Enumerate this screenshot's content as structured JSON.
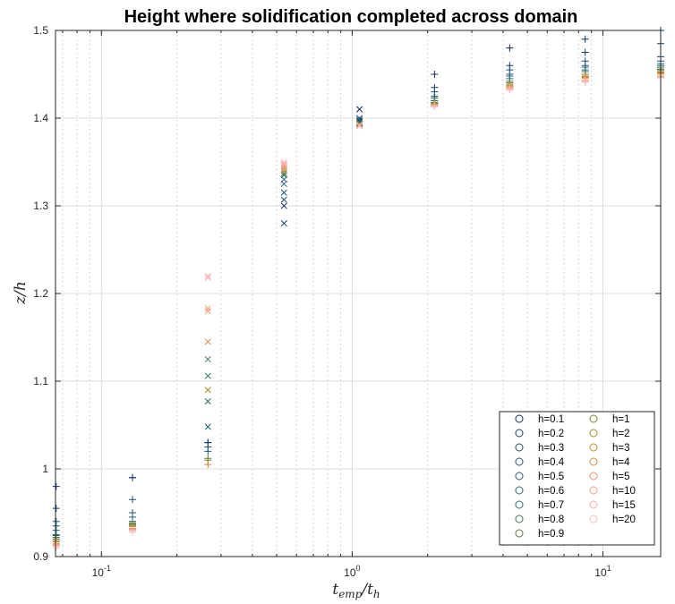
{
  "chart_data": {
    "type": "scatter",
    "title": "Height where solidification completed across domain",
    "xlabel_base": "t",
    "xlabel_base_sub": "emp",
    "xlabel_slash": "/t",
    "xlabel_den_sub": "h",
    "ylabel": "z/h",
    "xscale": "log",
    "xlim": [
      0.0656,
      17.0
    ],
    "ylim": [
      0.9,
      1.5
    ],
    "grid": true,
    "x_ticks": [
      {
        "value": 0.1,
        "base": "10",
        "exp": "-1"
      },
      {
        "value": 1,
        "base": "10",
        "exp": "0"
      },
      {
        "value": 10,
        "base": "10",
        "exp": "1"
      }
    ],
    "y_ticks": [
      {
        "value": 0.9,
        "label": "0.9"
      },
      {
        "value": 1.0,
        "label": "1"
      },
      {
        "value": 1.1,
        "label": "1.1"
      },
      {
        "value": 1.2,
        "label": "1.2"
      },
      {
        "value": 1.3,
        "label": "1.3"
      },
      {
        "value": 1.4,
        "label": "1.4"
      },
      {
        "value": 1.5,
        "label": "1.5"
      }
    ],
    "legend_location": "bottom-right",
    "legend_columns": 2,
    "series": [
      {
        "name": "h=0.1",
        "color": "#0d2a5e",
        "points": [
          [
            0.066,
            0.98,
            "plus"
          ],
          [
            0.133,
            0.99,
            "plus"
          ],
          [
            0.266,
            1.03,
            "plus"
          ],
          [
            0.535,
            1.3,
            "x"
          ],
          [
            1.07,
            1.41,
            "x"
          ],
          [
            2.13,
            1.45,
            "plus"
          ],
          [
            4.25,
            1.48,
            "plus"
          ],
          [
            8.5,
            1.49,
            "plus"
          ],
          [
            17.0,
            1.5,
            "plus"
          ]
        ]
      },
      {
        "name": "h=0.2",
        "color": "#143a6b",
        "points": [
          [
            0.066,
            0.955,
            "plus"
          ],
          [
            0.133,
            0.99,
            "plus"
          ],
          [
            0.266,
            1.03,
            "plus"
          ],
          [
            0.535,
            1.28,
            "x"
          ],
          [
            1.07,
            1.4,
            "x"
          ],
          [
            2.13,
            1.435,
            "plus"
          ],
          [
            4.25,
            1.46,
            "plus"
          ],
          [
            8.5,
            1.475,
            "plus"
          ],
          [
            17.0,
            1.485,
            "plus"
          ]
        ]
      },
      {
        "name": "h=0.3",
        "color": "#1b4a74",
        "points": [
          [
            0.066,
            0.94,
            "plus"
          ],
          [
            0.133,
            0.965,
            "plus"
          ],
          [
            0.266,
            1.025,
            "plus"
          ],
          [
            0.535,
            1.307,
            "x"
          ],
          [
            1.07,
            1.398,
            "x"
          ],
          [
            2.13,
            1.43,
            "plus"
          ],
          [
            4.25,
            1.455,
            "plus"
          ],
          [
            8.5,
            1.465,
            "plus"
          ],
          [
            17.0,
            1.47,
            "plus"
          ]
        ]
      },
      {
        "name": "h=0.4",
        "color": "#1f5578",
        "points": [
          [
            0.066,
            0.935,
            "plus"
          ],
          [
            0.133,
            0.95,
            "plus"
          ],
          [
            0.266,
            1.02,
            "plus"
          ],
          [
            0.535,
            1.315,
            "x"
          ],
          [
            1.07,
            1.397,
            "x"
          ],
          [
            2.13,
            1.425,
            "plus"
          ],
          [
            4.25,
            1.45,
            "plus"
          ],
          [
            8.5,
            1.46,
            "plus"
          ],
          [
            17.0,
            1.465,
            "plus"
          ]
        ]
      },
      {
        "name": "h=0.5",
        "color": "#22607a",
        "points": [
          [
            0.066,
            0.93,
            "plus"
          ],
          [
            0.133,
            0.945,
            "plus"
          ],
          [
            0.266,
            1.048,
            "x"
          ],
          [
            0.535,
            1.325,
            "x"
          ],
          [
            1.07,
            1.396,
            "x"
          ],
          [
            2.13,
            1.423,
            "plus"
          ],
          [
            4.25,
            1.448,
            "plus"
          ],
          [
            8.5,
            1.458,
            "plus"
          ],
          [
            17.0,
            1.462,
            "plus"
          ]
        ]
      },
      {
        "name": "h=0.6",
        "color": "#296b71",
        "points": [
          [
            0.066,
            0.925,
            "plus"
          ],
          [
            0.133,
            0.94,
            "plus"
          ],
          [
            0.266,
            1.077,
            "x"
          ],
          [
            0.535,
            1.33,
            "x"
          ],
          [
            1.07,
            1.395,
            "x"
          ],
          [
            2.13,
            1.42,
            "plus"
          ],
          [
            4.25,
            1.445,
            "plus"
          ],
          [
            8.5,
            1.455,
            "plus"
          ],
          [
            17.0,
            1.46,
            "plus"
          ]
        ]
      },
      {
        "name": "h=0.7",
        "color": "#2f7366",
        "points": [
          [
            0.066,
            0.924,
            "plus"
          ],
          [
            0.133,
            0.94,
            "plus"
          ],
          [
            0.266,
            1.106,
            "x"
          ],
          [
            0.535,
            1.335,
            "x"
          ],
          [
            1.07,
            1.394,
            "x"
          ],
          [
            2.13,
            1.42,
            "plus"
          ],
          [
            4.25,
            1.442,
            "plus"
          ],
          [
            8.5,
            1.453,
            "plus"
          ],
          [
            17.0,
            1.458,
            "plus"
          ]
        ]
      },
      {
        "name": "h=0.8",
        "color": "#3f7a52",
        "points": [
          [
            0.066,
            0.922,
            "plus"
          ],
          [
            0.133,
            0.938,
            "plus"
          ],
          [
            0.266,
            1.125,
            "x"
          ],
          [
            0.535,
            1.337,
            "x"
          ],
          [
            1.07,
            1.394,
            "x"
          ],
          [
            2.13,
            1.418,
            "plus"
          ],
          [
            4.25,
            1.44,
            "plus"
          ],
          [
            8.5,
            1.45,
            "plus"
          ],
          [
            17.0,
            1.456,
            "plus"
          ]
        ]
      },
      {
        "name": "h=0.9",
        "color": "#5c7d3a",
        "points": [
          [
            0.066,
            0.92,
            "plus"
          ],
          [
            0.133,
            0.937,
            "plus"
          ],
          [
            0.266,
            1.012,
            "plus"
          ],
          [
            0.535,
            1.34,
            "x"
          ],
          [
            1.07,
            1.393,
            "x"
          ],
          [
            2.13,
            1.418,
            "plus"
          ],
          [
            4.25,
            1.44,
            "plus"
          ],
          [
            8.5,
            1.45,
            "plus"
          ],
          [
            17.0,
            1.455,
            "plus"
          ]
        ]
      },
      {
        "name": "h=1",
        "color": "#7e8030",
        "points": [
          [
            0.066,
            0.92,
            "plus"
          ],
          [
            0.133,
            0.936,
            "plus"
          ],
          [
            0.266,
            1.01,
            "plus"
          ],
          [
            0.535,
            1.34,
            "x"
          ],
          [
            1.07,
            1.393,
            "x"
          ],
          [
            2.13,
            1.417,
            "plus"
          ],
          [
            4.25,
            1.44,
            "plus"
          ],
          [
            8.5,
            1.45,
            "plus"
          ],
          [
            17.0,
            1.455,
            "plus"
          ]
        ]
      },
      {
        "name": "h=2",
        "color": "#a28a2e",
        "points": [
          [
            0.066,
            0.918,
            "plus"
          ],
          [
            0.133,
            0.935,
            "plus"
          ],
          [
            0.266,
            1.09,
            "x"
          ],
          [
            0.535,
            1.34,
            "x"
          ],
          [
            1.07,
            1.393,
            "x"
          ],
          [
            2.13,
            1.416,
            "plus"
          ],
          [
            4.25,
            1.438,
            "plus"
          ],
          [
            8.5,
            1.448,
            "plus"
          ],
          [
            17.0,
            1.453,
            "plus"
          ]
        ]
      },
      {
        "name": "h=3",
        "color": "#c08a38",
        "points": [
          [
            0.066,
            0.917,
            "plus"
          ],
          [
            0.133,
            0.934,
            "plus"
          ],
          [
            0.266,
            1.005,
            "plus"
          ],
          [
            0.535,
            1.34,
            "x"
          ],
          [
            1.07,
            1.392,
            "x"
          ],
          [
            2.13,
            1.416,
            "plus"
          ],
          [
            4.25,
            1.437,
            "plus"
          ],
          [
            8.5,
            1.447,
            "plus"
          ],
          [
            17.0,
            1.452,
            "plus"
          ]
        ]
      },
      {
        "name": "h=4",
        "color": "#dc8a48",
        "points": [
          [
            0.066,
            0.915,
            "plus"
          ],
          [
            0.133,
            0.932,
            "plus"
          ],
          [
            0.266,
            1.145,
            "x"
          ],
          [
            0.535,
            1.343,
            "x"
          ],
          [
            1.07,
            1.392,
            "x"
          ],
          [
            2.13,
            1.415,
            "plus"
          ],
          [
            4.25,
            1.436,
            "plus"
          ],
          [
            8.5,
            1.446,
            "plus"
          ],
          [
            17.0,
            1.451,
            "plus"
          ]
        ]
      },
      {
        "name": "h=5",
        "color": "#ef9663",
        "points": [
          [
            0.066,
            0.914,
            "plus"
          ],
          [
            0.133,
            0.931,
            "plus"
          ],
          [
            0.266,
            1.18,
            "x"
          ],
          [
            0.535,
            1.345,
            "x"
          ],
          [
            1.07,
            1.392,
            "x"
          ],
          [
            2.13,
            1.415,
            "plus"
          ],
          [
            4.25,
            1.435,
            "plus"
          ],
          [
            8.5,
            1.445,
            "plus"
          ],
          [
            17.0,
            1.45,
            "plus"
          ]
        ]
      },
      {
        "name": "h=10",
        "color": "#f5a085",
        "points": [
          [
            0.066,
            0.913,
            "plus"
          ],
          [
            0.133,
            0.93,
            "plus"
          ],
          [
            0.266,
            1.183,
            "x"
          ],
          [
            0.535,
            1.347,
            "x"
          ],
          [
            1.07,
            1.392,
            "x"
          ],
          [
            2.13,
            1.414,
            "plus"
          ],
          [
            4.25,
            1.434,
            "plus"
          ],
          [
            8.5,
            1.443,
            "plus"
          ],
          [
            17.0,
            1.448,
            "plus"
          ]
        ]
      },
      {
        "name": "h=15",
        "color": "#f8a9a3",
        "points": [
          [
            0.066,
            0.912,
            "plus"
          ],
          [
            0.133,
            0.928,
            "plus"
          ],
          [
            0.266,
            1.218,
            "x"
          ],
          [
            0.535,
            1.348,
            "x"
          ],
          [
            1.07,
            1.391,
            "x"
          ],
          [
            2.13,
            1.414,
            "plus"
          ],
          [
            4.25,
            1.433,
            "plus"
          ],
          [
            8.5,
            1.442,
            "plus"
          ],
          [
            17.0,
            1.447,
            "plus"
          ]
        ]
      },
      {
        "name": "h=20",
        "color": "#fab8bd",
        "points": [
          [
            0.066,
            0.91,
            "plus"
          ],
          [
            0.133,
            0.928,
            "plus"
          ],
          [
            0.266,
            1.22,
            "x"
          ],
          [
            0.535,
            1.35,
            "x"
          ],
          [
            1.07,
            1.391,
            "x"
          ],
          [
            2.13,
            1.413,
            "plus"
          ],
          [
            4.25,
            1.432,
            "plus"
          ],
          [
            8.5,
            1.441,
            "plus"
          ],
          [
            17.0,
            1.446,
            "plus"
          ]
        ]
      }
    ]
  }
}
